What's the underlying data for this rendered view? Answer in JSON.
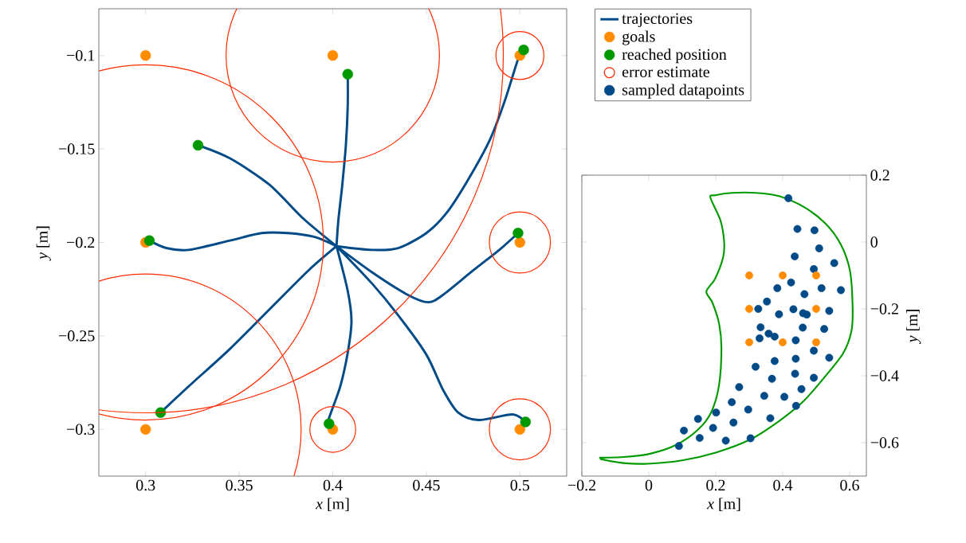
{
  "chart_data": [
    {
      "type": "line",
      "xlabel": "*x* [m]",
      "ylabel": "*y* [m]",
      "xlim": [
        0.275,
        0.525
      ],
      "ylim": [
        -0.325,
        -0.075
      ],
      "xticks": [
        0.3,
        0.35,
        0.4,
        0.45,
        0.5
      ],
      "yticks": [
        {
          "value": -0.3,
          "label": "−0.3"
        },
        {
          "value": -0.25,
          "label": "−0.25"
        },
        {
          "value": -0.2,
          "label": "−0.2"
        },
        {
          "value": -0.15,
          "label": "−0.15"
        },
        {
          "value": -0.1,
          "label": "−0.1"
        }
      ],
      "legend": "top right",
      "series": [
        {
          "name": "trajectories",
          "color": "#004b87",
          "x": [
            0.402,
            0.384,
            0.366,
            0.345,
            0.328,
            null,
            0.402,
            0.39,
            0.376,
            0.362,
            0.345,
            0.323,
            0.311,
            0.302,
            null,
            0.402,
            0.403,
            0.405,
            0.407,
            0.408,
            0.408,
            null,
            0.402,
            0.421,
            0.435,
            0.45,
            0.461,
            0.472,
            0.484,
            0.492,
            0.499,
            0.502,
            null,
            0.402,
            0.421,
            0.44,
            0.451,
            0.459,
            0.475,
            0.489,
            0.499,
            null,
            0.402,
            0.387,
            0.366,
            0.345,
            0.323,
            0.308,
            null,
            0.402,
            0.408,
            0.41,
            0.408,
            0.404,
            0.398,
            0.398,
            null,
            0.402,
            0.421,
            0.435,
            0.45,
            0.459,
            0.467,
            0.478,
            0.496,
            0.503
          ],
          "values": [
            -0.202,
            -0.187,
            -0.169,
            -0.155,
            -0.148,
            null,
            -0.202,
            -0.197,
            -0.195,
            -0.195,
            -0.199,
            -0.204,
            -0.203,
            -0.199,
            null,
            -0.202,
            -0.188,
            -0.17,
            -0.148,
            -0.127,
            -0.11,
            null,
            -0.202,
            -0.204,
            -0.203,
            -0.195,
            -0.184,
            -0.167,
            -0.145,
            -0.124,
            -0.102,
            -0.097,
            null,
            -0.202,
            -0.216,
            -0.228,
            -0.232,
            -0.228,
            -0.215,
            -0.204,
            -0.195,
            null,
            -0.202,
            -0.215,
            -0.236,
            -0.257,
            -0.277,
            -0.291,
            null,
            -0.202,
            -0.226,
            -0.242,
            -0.259,
            -0.277,
            -0.294,
            -0.297,
            null,
            -0.202,
            -0.222,
            -0.239,
            -0.26,
            -0.279,
            -0.291,
            -0.295,
            -0.292,
            -0.296
          ]
        },
        {
          "type": "scatter",
          "name": "goals",
          "color": "#ff8c00",
          "x": [
            0.3,
            0.4,
            0.5,
            0.3,
            0.5,
            0.3,
            0.4,
            0.5
          ],
          "values": [
            -0.1,
            -0.1,
            -0.1,
            -0.2,
            -0.2,
            -0.3,
            -0.3,
            -0.3
          ]
        },
        {
          "type": "scatter",
          "name": "reached position",
          "color": "#009900",
          "x": [
            0.328,
            0.302,
            0.408,
            0.502,
            0.499,
            0.308,
            0.398,
            0.503
          ],
          "values": [
            -0.148,
            -0.199,
            -0.11,
            -0.097,
            -0.195,
            -0.291,
            -0.297,
            -0.296
          ]
        },
        {
          "type": "bubble",
          "name": "error estimate",
          "color": "#ff2a00",
          "x": [
            0.3,
            0.4,
            0.5,
            0.3,
            0.5,
            0.3,
            0.4,
            0.5
          ],
          "values": [
            -0.1,
            -0.1,
            -0.1,
            -0.2,
            -0.2,
            -0.3,
            -0.3,
            -0.3
          ],
          "sizes": [
            1,
            0.089,
            0.0045,
            0.247,
            0.0073,
            0.189,
            0.0041,
            0.0073
          ]
        }
      ]
    },
    {
      "type": "line",
      "xlabel": "*x* [m]",
      "ylabel": "*y* [m]",
      "xlim": [
        -0.2,
        0.65
      ],
      "ylim": [
        -0.7,
        0.2
      ],
      "xticks": [
        {
          "value": -0.2,
          "label": "−0.2"
        },
        0,
        0.2,
        0.4,
        0.6
      ],
      "yticks": [
        {
          "value": -0.6,
          "label": "−0.6"
        },
        {
          "value": -0.4,
          "label": "−0.4"
        },
        {
          "value": -0.2,
          "label": "−0.2"
        },
        0,
        0.2
      ],
      "series": [
        {
          "color": "#009900",
          "x": [
            -0.148,
            -0.075,
            0.004,
            0.083,
            0.146,
            0.186,
            0.21,
            0.217,
            0.21,
            0.19,
            0.172,
            0.198,
            0.222,
            0.225,
            0.214,
            0.184,
            0.198,
            0.249,
            0.32,
            0.391,
            0.463,
            0.526,
            0.573,
            0.601,
            0.609,
            0.605,
            0.581,
            0.526,
            0.463,
            0.391,
            0.304,
            0.202,
            0.099,
            -0.004,
            -0.075,
            -0.146
          ],
          "values": [
            -0.645,
            -0.643,
            -0.633,
            -0.606,
            -0.562,
            -0.51,
            -0.427,
            -0.316,
            -0.244,
            -0.181,
            -0.148,
            -0.11,
            -0.046,
            0.002,
            0.065,
            0.133,
            0.14,
            0.147,
            0.147,
            0.137,
            0.105,
            0.057,
            -0.006,
            -0.086,
            -0.197,
            -0.268,
            -0.332,
            -0.403,
            -0.475,
            -0.534,
            -0.59,
            -0.629,
            -0.653,
            -0.663,
            -0.661,
            -0.649
          ]
        },
        {
          "type": "scatter",
          "name": "sampled datapoints",
          "color": "#004b87",
          "x": [
            0.417,
            0.444,
            0.495,
            0.509,
            0.436,
            0.554,
            0.493,
            0.425,
            0.384,
            0.516,
            0.574,
            0.465,
            0.353,
            0.327,
            0.432,
            0.389,
            0.461,
            0.472,
            0.539,
            0.334,
            0.46,
            0.524,
            0.358,
            0.376,
            0.331,
            0.439,
            0.493,
            0.539,
            0.439,
            0.376,
            0.319,
            0.437,
            0.368,
            0.493,
            0.27,
            0.456,
            0.345,
            0.405,
            0.248,
            0.44,
            0.201,
            0.297,
            0.147,
            0.363,
            0.253,
            0.192,
            0.105,
            0.152,
            0.23,
            0.304,
            0.09
          ],
          "values": [
            0.131,
            0.039,
            0.035,
            -0.019,
            -0.043,
            -0.063,
            -0.081,
            -0.121,
            -0.138,
            -0.138,
            -0.144,
            -0.156,
            -0.178,
            -0.2,
            -0.201,
            -0.216,
            -0.213,
            -0.217,
            -0.206,
            -0.255,
            -0.256,
            -0.26,
            -0.274,
            -0.283,
            -0.288,
            -0.294,
            -0.325,
            -0.346,
            -0.349,
            -0.356,
            -0.373,
            -0.394,
            -0.409,
            -0.406,
            -0.434,
            -0.44,
            -0.46,
            -0.463,
            -0.479,
            -0.49,
            -0.51,
            -0.501,
            -0.529,
            -0.527,
            -0.54,
            -0.556,
            -0.564,
            -0.586,
            -0.594,
            -0.587,
            -0.61
          ]
        },
        {
          "type": "scatter",
          "color": "#ff8c00",
          "x": [
            0.3,
            0.4,
            0.5,
            0.3,
            0.5,
            0.3,
            0.4,
            0.5
          ],
          "values": [
            -0.1,
            -0.1,
            -0.1,
            -0.2,
            -0.2,
            -0.3,
            -0.3,
            -0.3
          ]
        }
      ]
    }
  ]
}
